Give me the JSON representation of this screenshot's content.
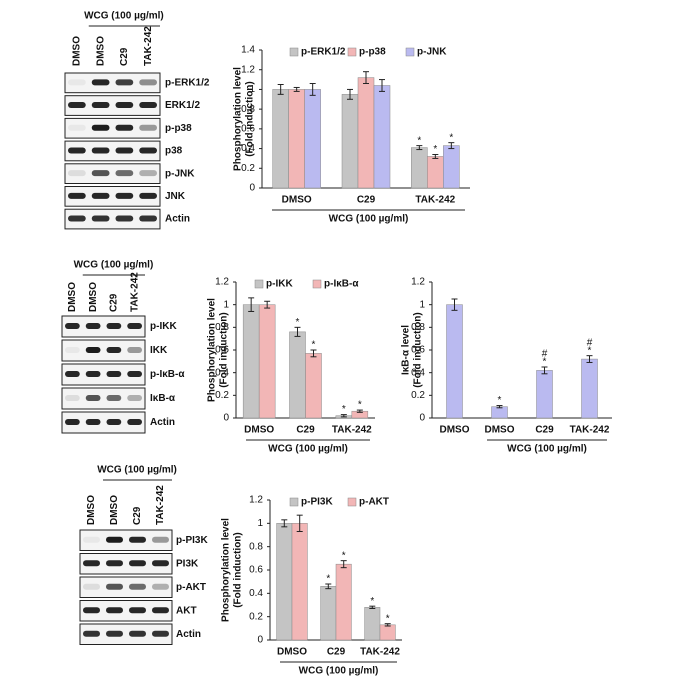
{
  "chart_data": [
    {
      "type": "bar",
      "ylabel": [
        "Phosphorylation level",
        "(Fold induction)"
      ],
      "xlabel": "WCG (100 µg/ml)",
      "categories": [
        "DMSO",
        "C29",
        "TAK-242"
      ],
      "ylim": [
        0,
        1.4
      ],
      "yticks": [
        0,
        0.2,
        0.4,
        0.6,
        0.8,
        1,
        1.2,
        1.4
      ],
      "series": [
        {
          "name": "p-ERK1/2",
          "color": "#c4c4c4",
          "values": [
            1,
            0.95,
            0.41
          ],
          "errors": [
            0.05,
            0.05,
            0.02
          ],
          "annotations": [
            null,
            null,
            [
              "*"
            ]
          ]
        },
        {
          "name": "p-p38",
          "color": "#f2b6b6",
          "values": [
            1,
            1.12,
            0.32
          ],
          "errors": [
            0.02,
            0.06,
            0.02
          ],
          "annotations": [
            null,
            null,
            [
              "*"
            ]
          ]
        },
        {
          "name": "p-JNK",
          "color": "#babaf0",
          "values": [
            1,
            1.04,
            0.43
          ],
          "errors": [
            0.06,
            0.06,
            0.03
          ],
          "annotations": [
            null,
            null,
            [
              "*"
            ]
          ]
        }
      ]
    },
    {
      "type": "bar",
      "ylabel": [
        "Phosphorylation level",
        "(Fold induction)"
      ],
      "xlabel": "WCG (100 µg/ml)",
      "categories": [
        "DMSO",
        "C29",
        "TAK-242"
      ],
      "ylim": [
        0,
        1.2
      ],
      "yticks": [
        0,
        0.2,
        0.4,
        0.6,
        0.8,
        1,
        1.2
      ],
      "series": [
        {
          "name": "p-IKK",
          "color": "#c4c4c4",
          "values": [
            1,
            0.76,
            0.02
          ],
          "errors": [
            0.06,
            0.04,
            0.01
          ],
          "annotations": [
            null,
            [
              "*"
            ],
            [
              "*"
            ]
          ]
        },
        {
          "name": "p-IκB-α",
          "color": "#f2b6b6",
          "values": [
            1,
            0.57,
            0.06
          ],
          "errors": [
            0.03,
            0.03,
            0.01
          ],
          "annotations": [
            null,
            [
              "*"
            ],
            [
              "*"
            ]
          ]
        }
      ]
    },
    {
      "type": "bar",
      "ylabel": [
        "IκB-α level",
        "(Fold induction)"
      ],
      "xlabel": "WCG (100 µg/ml)",
      "categories": [
        "DMSO",
        "DMSO",
        "C29",
        "TAK-242"
      ],
      "ylim": [
        0,
        1.2
      ],
      "yticks": [
        0,
        0.2,
        0.4,
        0.6,
        0.8,
        1,
        1.2
      ],
      "series": [
        {
          "name": null,
          "color": "#babaf0",
          "values": [
            1,
            0.1,
            0.42,
            0.52
          ],
          "errors": [
            0.05,
            0.01,
            0.03,
            0.03
          ],
          "annotations": [
            null,
            [
              "*"
            ],
            [
              "#",
              "*"
            ],
            [
              "#",
              "*"
            ]
          ]
        }
      ]
    },
    {
      "type": "bar",
      "ylabel": [
        "Phosphorylation level",
        "(Fold induction)"
      ],
      "xlabel": "WCG (100 µg/ml)",
      "categories": [
        "DMSO",
        "C29",
        "TAK-242"
      ],
      "ylim": [
        0,
        1.2
      ],
      "yticks": [
        0,
        0.2,
        0.4,
        0.6,
        0.8,
        1,
        1.2
      ],
      "series": [
        {
          "name": "p-PI3K",
          "color": "#c4c4c4",
          "values": [
            1,
            0.46,
            0.28
          ],
          "errors": [
            0.03,
            0.02,
            0.01
          ],
          "annotations": [
            null,
            [
              "*"
            ],
            [
              "*"
            ]
          ]
        },
        {
          "name": "p-AKT",
          "color": "#f2b6b6",
          "values": [
            1,
            0.65,
            0.13
          ],
          "errors": [
            0.07,
            0.03,
            0.01
          ],
          "annotations": [
            null,
            [
              "*"
            ],
            [
              "*"
            ]
          ]
        }
      ]
    }
  ],
  "blots": [
    {
      "header": "WCG (100 µg/ml)",
      "lanes": [
        "DMSO",
        "DMSO",
        "C29",
        "TAK-242"
      ],
      "rows": [
        "p-ERK1/2",
        "ERK1/2",
        "p-p38",
        "p38",
        "p-JNK",
        "JNK",
        "Actin"
      ]
    },
    {
      "header": "WCG (100 µg/ml)",
      "lanes": [
        "DMSO",
        "DMSO",
        "C29",
        "TAK-242"
      ],
      "rows": [
        "p-IKK",
        "IKK",
        "p-IκB-α",
        "IκB-α",
        "Actin"
      ]
    },
    {
      "header": "WCG (100 µg/ml)",
      "lanes": [
        "DMSO",
        "DMSO",
        "C29",
        "TAK-242"
      ],
      "rows": [
        "p-PI3K",
        "PI3K",
        "p-AKT",
        "AKT",
        "Actin"
      ]
    }
  ]
}
